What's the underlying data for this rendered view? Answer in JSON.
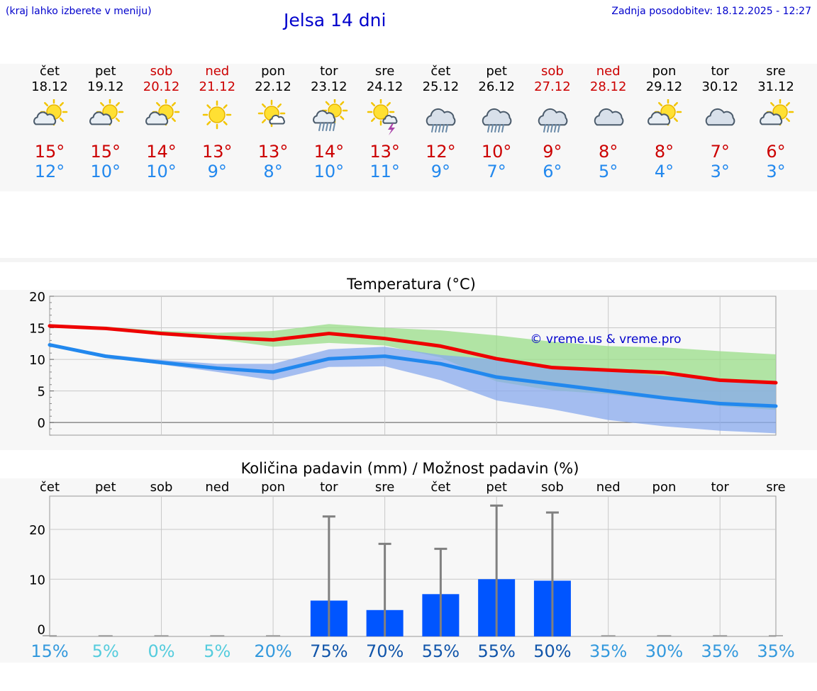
{
  "header": {
    "hint": "(kraj lahko izberete v meniju)",
    "title": "Jelsa 14 dni",
    "updated": "Zadnja posodobitev: 18.12.2025 - 12:27"
  },
  "days": [
    {
      "name": "čet",
      "date": "18.12",
      "weekend": false,
      "icon": "partly-cloudy-icon",
      "max": "15°",
      "min": "12°"
    },
    {
      "name": "pet",
      "date": "19.12",
      "weekend": false,
      "icon": "partly-cloudy-icon",
      "max": "15°",
      "min": "10°"
    },
    {
      "name": "sob",
      "date": "20.12",
      "weekend": true,
      "icon": "partly-cloudy-icon",
      "max": "14°",
      "min": "10°"
    },
    {
      "name": "ned",
      "date": "21.12",
      "weekend": true,
      "icon": "sun-icon",
      "max": "13°",
      "min": "9°"
    },
    {
      "name": "pon",
      "date": "22.12",
      "weekend": false,
      "icon": "sun-small-cloud-icon",
      "max": "13°",
      "min": "8°"
    },
    {
      "name": "tor",
      "date": "23.12",
      "weekend": false,
      "icon": "sun-cloud-rain-icon",
      "max": "14°",
      "min": "10°"
    },
    {
      "name": "sre",
      "date": "24.12",
      "weekend": false,
      "icon": "sun-thunderstorm-icon",
      "max": "13°",
      "min": "11°"
    },
    {
      "name": "čet",
      "date": "25.12",
      "weekend": false,
      "icon": "cloud-rain-icon",
      "max": "12°",
      "min": "9°"
    },
    {
      "name": "pet",
      "date": "26.12",
      "weekend": false,
      "icon": "cloud-rain-icon",
      "max": "10°",
      "min": "7°"
    },
    {
      "name": "sob",
      "date": "27.12",
      "weekend": true,
      "icon": "cloud-rain-icon",
      "max": "9°",
      "min": "6°"
    },
    {
      "name": "ned",
      "date": "28.12",
      "weekend": true,
      "icon": "cloudy-icon",
      "max": "8°",
      "min": "5°"
    },
    {
      "name": "pon",
      "date": "29.12",
      "weekend": false,
      "icon": "partly-cloudy-icon",
      "max": "8°",
      "min": "4°"
    },
    {
      "name": "tor",
      "date": "30.12",
      "weekend": false,
      "icon": "cloudy-icon",
      "max": "7°",
      "min": "3°"
    },
    {
      "name": "sre",
      "date": "31.12",
      "weekend": false,
      "icon": "partly-cloudy-icon",
      "max": "6°",
      "min": "3°"
    }
  ],
  "colors": {
    "max_text": "#cc0000",
    "min_text": "#2288ee",
    "max_line": "#ee0000",
    "min_line": "#2288ee",
    "max_band": "#99dd88",
    "min_band": "#88aaee",
    "bar": "#0055ff",
    "error": "#808080",
    "credit": "#0000cc"
  },
  "chart_data": [
    {
      "type": "line",
      "title": "Temperatura (°C)",
      "credit": "© vreme.us & vreme.pro",
      "categories": [
        "18.12",
        "19.12",
        "20.12",
        "21.12",
        "22.12",
        "23.12",
        "24.12",
        "25.12",
        "26.12",
        "27.12",
        "28.12",
        "29.12",
        "30.12",
        "31.12"
      ],
      "ylim": [
        -2,
        20
      ],
      "yticks": [
        0,
        5,
        10,
        15,
        20
      ],
      "series": [
        {
          "name": "max",
          "values": [
            15.3,
            14.9,
            14.1,
            13.5,
            13.1,
            14.1,
            13.3,
            12.1,
            10.1,
            8.7,
            8.3,
            7.9,
            6.7,
            6.3
          ],
          "band_low": [
            15.3,
            14.9,
            13.8,
            13.2,
            12.0,
            12.6,
            12.2,
            10.3,
            6.5,
            5.1,
            4.5,
            3.6,
            2.6,
            2.0
          ],
          "band_high": [
            15.3,
            15.2,
            14.5,
            14.2,
            14.5,
            15.6,
            15.0,
            14.6,
            13.8,
            12.8,
            12.1,
            11.9,
            11.3,
            10.8
          ]
        },
        {
          "name": "min",
          "values": [
            12.3,
            10.5,
            9.5,
            8.6,
            8.0,
            10.1,
            10.5,
            9.3,
            7.2,
            6.1,
            5.0,
            3.9,
            3.0,
            2.6
          ],
          "band_low": [
            12.3,
            10.3,
            9.2,
            8.0,
            6.7,
            8.8,
            8.9,
            6.7,
            3.5,
            2.1,
            0.4,
            -0.6,
            -1.3,
            -1.7
          ],
          "band_high": [
            12.3,
            10.8,
            9.9,
            9.3,
            9.3,
            11.6,
            12.0,
            10.7,
            10.0,
            9.0,
            8.2,
            7.4,
            6.9,
            6.6
          ]
        }
      ]
    },
    {
      "type": "bar",
      "title": "Količina padavin (mm) / Možnost padavin (%)",
      "categories": [
        "čet",
        "pet",
        "sob",
        "ned",
        "pon",
        "tor",
        "sre",
        "čet",
        "pet",
        "sob",
        "ned",
        "pon",
        "tor",
        "sre"
      ],
      "values": [
        0,
        0,
        0,
        0,
        0,
        5.7,
        3.8,
        7.0,
        10.0,
        9.7,
        0,
        0,
        0,
        0
      ],
      "error_high": [
        0,
        0,
        0,
        0,
        0,
        22.6,
        17.1,
        16.1,
        24.8,
        23.4,
        0,
        0,
        0,
        0
      ],
      "ylim": [
        -1.5,
        26.7
      ],
      "yticks": [
        0,
        10,
        20
      ],
      "chance": [
        "15%",
        "5%",
        "0%",
        "5%",
        "20%",
        "75%",
        "70%",
        "55%",
        "55%",
        "50%",
        "35%",
        "30%",
        "35%",
        "35%"
      ],
      "chance_colors": [
        "#3399dd",
        "#55ccdd",
        "#55ccdd",
        "#55ccdd",
        "#3399dd",
        "#1155aa",
        "#1155aa",
        "#1155aa",
        "#1155aa",
        "#1155aa",
        "#3399dd",
        "#3399dd",
        "#3399dd",
        "#3399dd"
      ]
    }
  ]
}
